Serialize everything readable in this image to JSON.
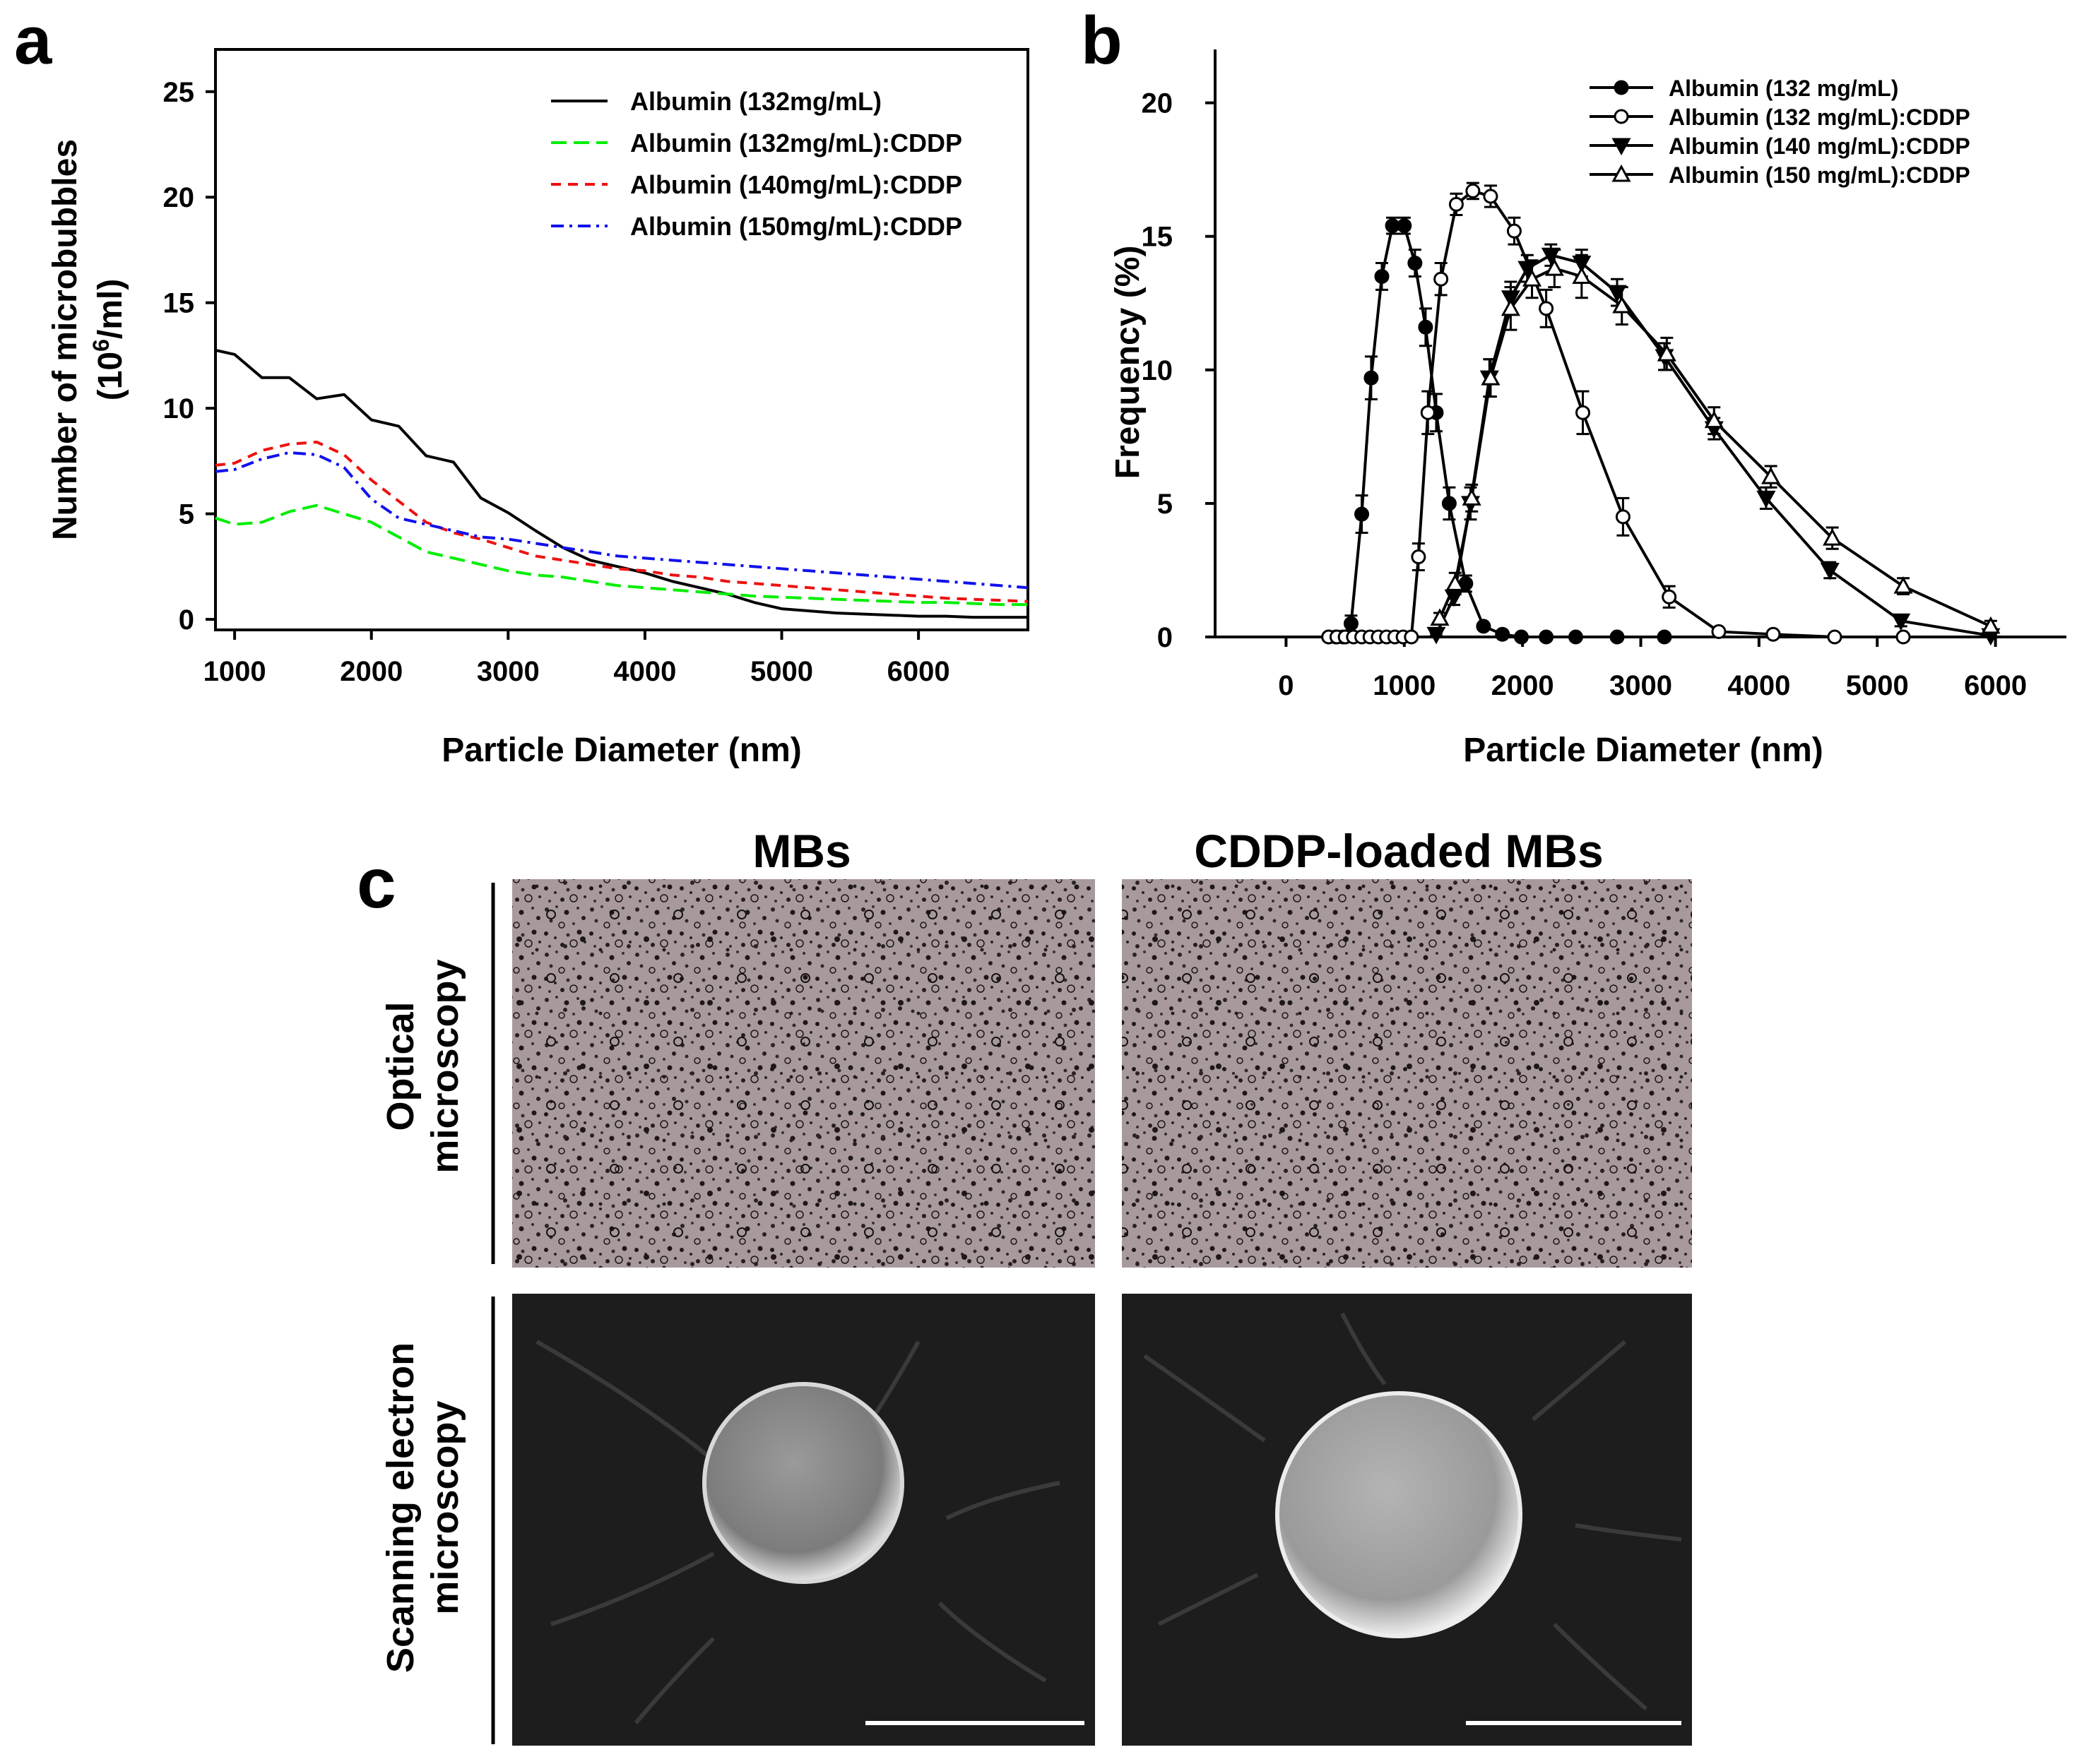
{
  "panels": {
    "a": {
      "label": "a"
    },
    "b": {
      "label": "b"
    },
    "c": {
      "label": "c",
      "col_titles": [
        "MBs",
        "CDDP-loaded MBs"
      ],
      "row_titles": [
        {
          "line1": "Optical",
          "line2": "microscopy"
        },
        {
          "line1": "Scanning electron",
          "line2": "microscopy"
        }
      ]
    }
  },
  "colors": {
    "black": "#000000",
    "green": "#00ee00",
    "red": "#ee1111",
    "blue": "#1111ee",
    "optical_bg": "#a89a9c",
    "sem_bg": "#1d1d1d"
  },
  "chart_data": [
    {
      "type": "line",
      "title": "",
      "xlabel": "Particle Diameter (nm)",
      "ylabel": "Number of microbubbles",
      "ylabel_line2": {
        "prefix": "(10",
        "sup": "6",
        "suffix": "/ml)"
      },
      "xlim": [
        860,
        6800
      ],
      "ylim": [
        -0.5,
        27
      ],
      "xticks": [
        1000,
        2000,
        3000,
        4000,
        5000,
        6000
      ],
      "yticks": [
        0,
        5,
        10,
        15,
        20,
        25
      ],
      "legend_position": "top-right",
      "series": [
        {
          "name": "Albumin (132mg/mL)",
          "color": "#000000",
          "dash": "solid",
          "x": [
            860,
            1000,
            1200,
            1400,
            1600,
            1800,
            2000,
            2200,
            2400,
            2600,
            2800,
            3000,
            3200,
            3400,
            3600,
            3800,
            4000,
            4200,
            4400,
            4600,
            4800,
            5000,
            5200,
            5400,
            5600,
            5800,
            6000,
            6200,
            6400,
            6600,
            6800
          ],
          "y": [
            13.0,
            12.3,
            11.7,
            11.2,
            10.7,
            10.4,
            9.7,
            8.9,
            8.0,
            7.2,
            6.0,
            4.8,
            4.2,
            3.4,
            2.8,
            2.5,
            2.2,
            1.8,
            1.5,
            1.2,
            0.8,
            0.5,
            0.4,
            0.3,
            0.25,
            0.2,
            0.15,
            0.15,
            0.1,
            0.1,
            0.1
          ]
        },
        {
          "name": "Albumin (132mg/mL):CDDP",
          "color": "#00ee00",
          "dash": "long",
          "x": [
            860,
            1000,
            1200,
            1400,
            1600,
            1800,
            2000,
            2200,
            2400,
            2600,
            2800,
            3000,
            3200,
            3400,
            3600,
            3800,
            4000,
            4200,
            4400,
            4600,
            4800,
            5000,
            5200,
            5400,
            5600,
            5800,
            6000,
            6200,
            6400,
            6600,
            6800
          ],
          "y": [
            4.8,
            4.5,
            4.6,
            5.1,
            5.4,
            5.0,
            4.6,
            3.9,
            3.2,
            2.9,
            2.6,
            2.3,
            2.1,
            2.0,
            1.8,
            1.6,
            1.5,
            1.4,
            1.3,
            1.2,
            1.1,
            1.05,
            1.0,
            0.95,
            0.9,
            0.85,
            0.8,
            0.8,
            0.75,
            0.7,
            0.7
          ]
        },
        {
          "name": "Albumin (140mg/mL):CDDP",
          "color": "#ee1111",
          "dash": "short",
          "x": [
            860,
            1000,
            1200,
            1400,
            1600,
            1800,
            2000,
            2200,
            2400,
            2600,
            2800,
            3000,
            3200,
            3400,
            3600,
            3800,
            4000,
            4200,
            4400,
            4600,
            4800,
            5000,
            5200,
            5400,
            5600,
            5800,
            6000,
            6200,
            6400,
            6600,
            6800
          ],
          "y": [
            7.3,
            7.4,
            8.0,
            8.3,
            8.4,
            7.8,
            6.6,
            5.6,
            4.6,
            4.1,
            3.8,
            3.4,
            3.0,
            2.8,
            2.6,
            2.4,
            2.3,
            2.1,
            2.0,
            1.8,
            1.7,
            1.6,
            1.5,
            1.4,
            1.3,
            1.2,
            1.1,
            1.0,
            0.95,
            0.9,
            0.85
          ]
        },
        {
          "name": "Albumin (150mg/mL):CDDP",
          "color": "#1111ee",
          "dash": "dashdot",
          "x": [
            860,
            1000,
            1200,
            1400,
            1600,
            1800,
            2000,
            2200,
            2400,
            2600,
            2800,
            3000,
            3200,
            3400,
            3600,
            3800,
            4000,
            4200,
            4400,
            4600,
            4800,
            5000,
            5200,
            5400,
            5600,
            5800,
            6000,
            6200,
            6400,
            6600,
            6800
          ],
          "y": [
            7.0,
            7.1,
            7.6,
            7.9,
            7.8,
            7.2,
            5.7,
            4.8,
            4.5,
            4.2,
            3.9,
            3.8,
            3.6,
            3.4,
            3.2,
            3.0,
            2.9,
            2.8,
            2.7,
            2.6,
            2.5,
            2.4,
            2.3,
            2.2,
            2.1,
            2.0,
            1.9,
            1.8,
            1.7,
            1.6,
            1.5
          ]
        }
      ]
    },
    {
      "type": "line",
      "title": "",
      "xlabel": "Particle Diameter (nm)",
      "ylabel": "Frequency (%)",
      "xlim": [
        -600,
        6600
      ],
      "ylim": [
        0,
        22
      ],
      "xticks": [
        0,
        1000,
        2000,
        3000,
        4000,
        5000,
        6000
      ],
      "yticks": [
        0,
        5,
        10,
        15,
        20
      ],
      "legend_position": "top-right",
      "series": [
        {
          "name": "Albumin (132 mg/mL)",
          "marker": "filled-circle",
          "x": [
            360,
            420,
            480,
            550,
            640,
            720,
            810,
            900,
            1000,
            1090,
            1180,
            1270,
            1380,
            1520,
            1670,
            1830,
            1990,
            2200,
            2450,
            2800,
            3200
          ],
          "y": [
            0,
            0,
            0,
            0.5,
            4.6,
            9.7,
            13.5,
            15.4,
            15.4,
            14.0,
            11.6,
            8.4,
            5.0,
            2.0,
            0.4,
            0.1,
            0,
            0,
            0,
            0,
            0
          ],
          "err": [
            0,
            0,
            0,
            0.3,
            0.7,
            0.8,
            0.5,
            0.3,
            0.3,
            0.5,
            0.7,
            0.7,
            0.6,
            0.3,
            0.1,
            0,
            0,
            0,
            0,
            0,
            0
          ]
        },
        {
          "name": "Albumin (132 mg/mL):CDDP",
          "marker": "open-circle",
          "x": [
            360,
            430,
            500,
            570,
            640,
            710,
            780,
            850,
            920,
            990,
            1060,
            1120,
            1200,
            1310,
            1440,
            1580,
            1730,
            1930,
            2200,
            2510,
            2850,
            3240,
            3660,
            4120,
            4640,
            5220
          ],
          "y": [
            0,
            0,
            0,
            0,
            0,
            0,
            0,
            0,
            0,
            0,
            0,
            3.0,
            8.4,
            13.4,
            16.2,
            16.7,
            16.5,
            15.2,
            12.3,
            8.4,
            4.5,
            1.5,
            0.2,
            0.1,
            0,
            0
          ],
          "err": [
            0,
            0,
            0,
            0,
            0,
            0,
            0,
            0,
            0,
            0,
            0,
            0.5,
            0.8,
            0.6,
            0.4,
            0.3,
            0.4,
            0.5,
            0.7,
            0.8,
            0.7,
            0.4,
            0.1,
            0,
            0,
            0
          ]
        },
        {
          "name": "Albumin (140 mg/mL):CDDP",
          "marker": "filled-triangle-down",
          "x": [
            1270,
            1420,
            1560,
            1720,
            1900,
            2040,
            2240,
            2500,
            2800,
            3200,
            3620,
            4060,
            4600,
            5200,
            5960
          ],
          "y": [
            0.1,
            1.5,
            5.0,
            9.7,
            12.7,
            13.8,
            14.3,
            14.0,
            12.9,
            10.5,
            7.8,
            5.2,
            2.5,
            0.6,
            0.05
          ],
          "err": [
            0.05,
            0.3,
            0.6,
            0.7,
            0.6,
            0.5,
            0.4,
            0.5,
            0.5,
            0.5,
            0.4,
            0.4,
            0.3,
            0.2,
            0.05
          ]
        },
        {
          "name": "Albumin (150 mg/mL):CDDP",
          "marker": "open-triangle-up",
          "x": [
            1300,
            1430,
            1570,
            1730,
            1900,
            2080,
            2270,
            2500,
            2840,
            3220,
            3620,
            4100,
            4620,
            5220,
            5960
          ],
          "y": [
            0.7,
            2.0,
            5.2,
            9.7,
            12.3,
            13.4,
            13.8,
            13.5,
            12.4,
            10.6,
            8.1,
            6.0,
            3.7,
            1.9,
            0.4
          ],
          "err": [
            0.2,
            0.4,
            0.5,
            0.7,
            0.8,
            0.7,
            0.7,
            0.8,
            0.7,
            0.6,
            0.5,
            0.4,
            0.4,
            0.3,
            0.2
          ]
        }
      ]
    }
  ]
}
